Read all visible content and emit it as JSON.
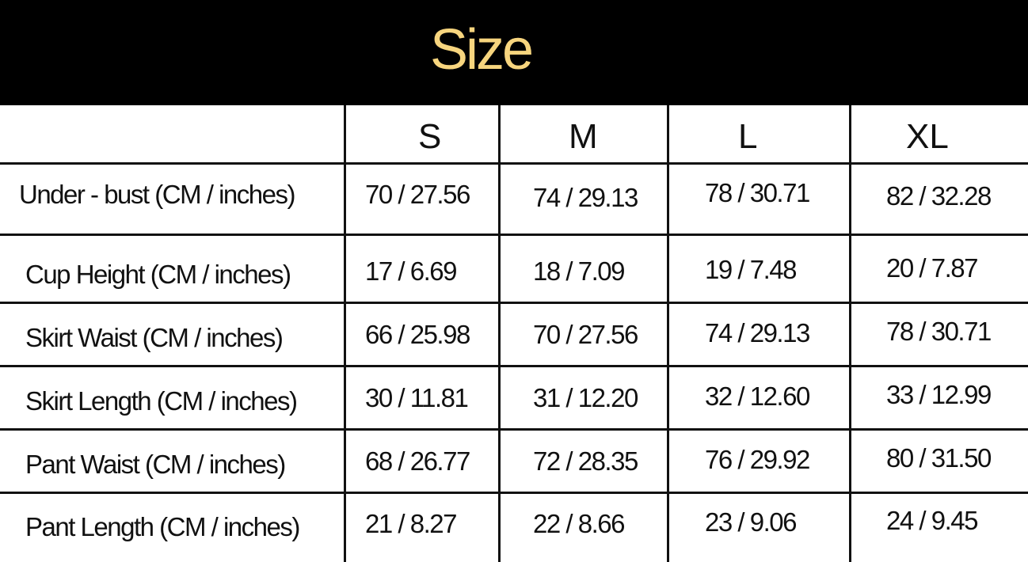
{
  "title": "Size",
  "colors": {
    "title": "#f7d57e",
    "banner": "#000000"
  },
  "columns": [
    "S",
    "M",
    "L",
    "XL"
  ],
  "rows": [
    {
      "label": "Under - bust (CM / inches)",
      "values": [
        "70 / 27.56",
        "74 / 29.13",
        "78 / 30.71",
        "82 / 32.28"
      ]
    },
    {
      "label": "Cup Height (CM / inches)",
      "values": [
        "17 / 6.69",
        "18 / 7.09",
        "19 / 7.48",
        "20 / 7.87"
      ]
    },
    {
      "label": "Skirt Waist (CM / inches)",
      "values": [
        "66 / 25.98",
        "70 / 27.56",
        "74 / 29.13",
        "78 / 30.71"
      ]
    },
    {
      "label": "Skirt Length (CM / inches)",
      "values": [
        "30 / 11.81",
        "31 / 12.20",
        "32 / 12.60",
        "33 / 12.99"
      ]
    },
    {
      "label": "Pant Waist (CM / inches)",
      "values": [
        "68 / 26.77",
        "72 / 28.35",
        "76 / 29.92",
        "80 / 31.50"
      ]
    },
    {
      "label": "Pant Length (CM / inches)",
      "values": [
        "21 / 8.27",
        "22 / 8.66",
        "23 / 9.06",
        "24 / 9.45"
      ]
    }
  ]
}
